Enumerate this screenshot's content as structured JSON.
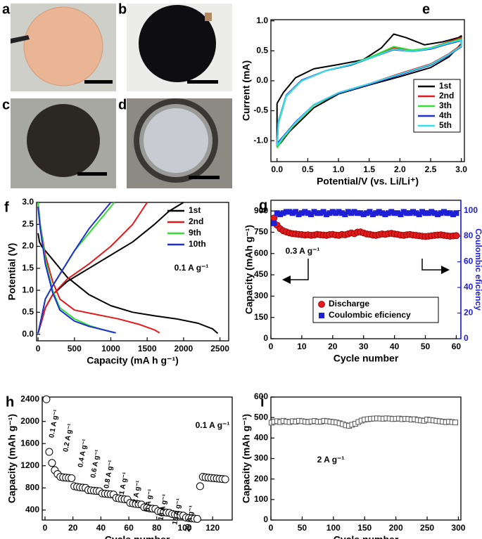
{
  "photo_panels": [
    {
      "label": "a"
    },
    {
      "label": "b"
    },
    {
      "label": "c"
    },
    {
      "label": "d"
    }
  ],
  "chart_data": [
    {
      "type": "line",
      "panel_label": "e",
      "xlabel": "Potential/V (vs. Li/Li⁺)",
      "ylabel": "Current (mA)",
      "xlim": [
        -0.1,
        3.05
      ],
      "ylim": [
        -1.35,
        1.02
      ],
      "xticks": [
        {
          "value": 0,
          "label": "0.0"
        },
        0.5,
        {
          "value": 1,
          "label": "1.0"
        },
        1.5,
        {
          "value": 2,
          "label": "2.0"
        },
        2.5,
        {
          "value": 3,
          "label": "3.0"
        }
      ],
      "yticks": [
        {
          "value": -1,
          "label": "-1.0"
        },
        -0.5,
        {
          "value": 0,
          "label": "0.0"
        },
        0.5,
        {
          "value": 1,
          "label": "1.0"
        }
      ],
      "series": [
        {
          "name": "1st",
          "color": "#000000",
          "x": [
            0,
            0.1,
            0.3,
            0.6,
            1.0,
            1.4,
            1.7,
            1.9,
            2.1,
            2.4,
            2.7,
            2.95,
            3.0,
            3.0,
            2.8,
            2.5,
            2.0,
            1.5,
            1.0,
            0.6,
            0.4,
            0.2,
            0.05,
            0,
            0
          ],
          "values": [
            -0.38,
            -0.2,
            0.05,
            0.2,
            0.27,
            0.35,
            0.55,
            0.78,
            0.72,
            0.6,
            0.65,
            0.72,
            0.75,
            0.62,
            0.4,
            0.22,
            0.07,
            -0.07,
            -0.22,
            -0.45,
            -0.65,
            -0.85,
            -1.05,
            -1.08,
            -0.38
          ]
        },
        {
          "name": "2nd",
          "color": "#e31a1c",
          "x": [
            0,
            0.02,
            0.15,
            0.4,
            0.8,
            1.2,
            1.6,
            1.9,
            2.2,
            2.5,
            2.8,
            3.0,
            3.0,
            2.8,
            2.5,
            2.0,
            1.5,
            1.0,
            0.6,
            0.3,
            0.1,
            0
          ],
          "values": [
            -1.1,
            -0.7,
            -0.25,
            0.0,
            0.17,
            0.27,
            0.42,
            0.55,
            0.5,
            0.55,
            0.65,
            0.72,
            0.6,
            0.45,
            0.28,
            0.12,
            -0.05,
            -0.2,
            -0.4,
            -0.7,
            -0.95,
            -1.1
          ]
        },
        {
          "name": "3th",
          "color": "#33dd33",
          "x": [
            0,
            0.02,
            0.15,
            0.4,
            0.8,
            1.2,
            1.6,
            1.9,
            2.2,
            2.5,
            2.8,
            3.0,
            3.0,
            2.8,
            2.5,
            2.0,
            1.5,
            1.0,
            0.6,
            0.3,
            0.1,
            0
          ],
          "values": [
            -1.12,
            -0.72,
            -0.26,
            0.0,
            0.17,
            0.27,
            0.43,
            0.57,
            0.51,
            0.55,
            0.64,
            0.7,
            0.58,
            0.44,
            0.27,
            0.11,
            -0.06,
            -0.21,
            -0.41,
            -0.71,
            -0.96,
            -1.12
          ]
        },
        {
          "name": "4th",
          "color": "#1f2fd0",
          "x": [
            0,
            0.02,
            0.15,
            0.4,
            0.8,
            1.2,
            1.6,
            1.9,
            2.2,
            2.5,
            2.8,
            3.0,
            3.0,
            2.8,
            2.5,
            2.0,
            1.5,
            1.0,
            0.6,
            0.3,
            0.1,
            0
          ],
          "values": [
            -1.05,
            -0.68,
            -0.24,
            0.01,
            0.17,
            0.26,
            0.41,
            0.52,
            0.49,
            0.53,
            0.62,
            0.67,
            0.57,
            0.43,
            0.26,
            0.1,
            -0.06,
            -0.21,
            -0.4,
            -0.69,
            -0.93,
            -1.05
          ]
        },
        {
          "name": "5th",
          "color": "#33ddee",
          "x": [
            0,
            0.02,
            0.15,
            0.4,
            0.8,
            1.2,
            1.6,
            1.9,
            2.2,
            2.5,
            2.8,
            3.0,
            3.0,
            2.8,
            2.5,
            2.0,
            1.5,
            1.0,
            0.6,
            0.3,
            0.1,
            0
          ],
          "values": [
            -1.08,
            -0.69,
            -0.25,
            0.0,
            0.17,
            0.27,
            0.41,
            0.53,
            0.49,
            0.54,
            0.63,
            0.68,
            0.58,
            0.44,
            0.27,
            0.11,
            -0.05,
            -0.2,
            -0.4,
            -0.7,
            -0.94,
            -1.08
          ]
        }
      ]
    },
    {
      "type": "line",
      "panel_label": "f",
      "xlabel": "Capacity (mA h g⁻¹)",
      "ylabel": "Potential (V)",
      "annotations": [
        "0.1 A g⁻¹"
      ],
      "xlim": [
        -20,
        2620
      ],
      "ylim": [
        -0.15,
        3.0
      ],
      "xticks": [
        0,
        500,
        1000,
        1500,
        2000,
        2500
      ],
      "yticks": [
        {
          "value": 0,
          "label": "0.0"
        },
        0.5,
        {
          "value": 1,
          "label": "1.0"
        },
        1.5,
        {
          "value": 2,
          "label": "2.0"
        },
        2.5,
        {
          "value": 3,
          "label": "3.0"
        }
      ],
      "series": [
        {
          "name": "1st",
          "color": "#000000",
          "x": [
            0,
            20,
            50,
            100,
            200,
            400,
            700,
            1000,
            1300,
            1600,
            1900,
            2200,
            2400,
            2470,
            null,
            0,
            50,
            100,
            200,
            400,
            700,
            1000,
            1300,
            1600,
            1800,
            2000
          ],
          "values": [
            2.3,
            2.1,
            2.0,
            1.9,
            1.7,
            1.3,
            0.9,
            0.65,
            0.5,
            0.42,
            0.35,
            0.25,
            0.12,
            0.02,
            null,
            0.02,
            0.3,
            0.6,
            0.9,
            1.2,
            1.5,
            1.8,
            2.1,
            2.5,
            2.8,
            3.0
          ]
        },
        {
          "name": "2nd",
          "color": "#e31a1c",
          "x": [
            0,
            30,
            100,
            200,
            300,
            500,
            800,
            1100,
            1400,
            1600,
            1670,
            null,
            0,
            50,
            100,
            200,
            400,
            700,
            1000,
            1300,
            1500
          ],
          "values": [
            3.0,
            2.5,
            1.8,
            1.2,
            0.8,
            0.55,
            0.45,
            0.35,
            0.22,
            0.1,
            0.03,
            null,
            0.02,
            0.3,
            0.6,
            0.9,
            1.25,
            1.6,
            2.0,
            2.5,
            3.0
          ]
        },
        {
          "name": "9th",
          "color": "#33dd33",
          "x": [
            0,
            30,
            100,
            200,
            300,
            500,
            700,
            900,
            1050,
            null,
            0,
            50,
            100,
            200,
            350,
            500,
            700,
            900,
            1050
          ],
          "values": [
            3.0,
            2.5,
            1.7,
            1.0,
            0.6,
            0.35,
            0.2,
            0.1,
            0.03,
            null,
            0.02,
            0.4,
            0.8,
            1.1,
            1.5,
            1.9,
            2.3,
            2.7,
            3.0
          ]
        },
        {
          "name": "10th",
          "color": "#1f2fd0",
          "x": [
            0,
            30,
            100,
            200,
            300,
            500,
            700,
            900,
            1070,
            null,
            0,
            50,
            100,
            200,
            350,
            500,
            700,
            900,
            1000
          ],
          "values": [
            2.9,
            2.4,
            1.6,
            0.95,
            0.55,
            0.3,
            0.18,
            0.1,
            0.03,
            null,
            0.02,
            0.4,
            0.8,
            1.1,
            1.5,
            1.9,
            2.4,
            2.8,
            3.0
          ]
        }
      ]
    },
    {
      "type": "scatter",
      "panel_label": "g",
      "xlabel": "Cycle number",
      "ylabel": "Capacity (mAh g⁻¹)",
      "y2label": "Coulombic eficiency",
      "y2_color": "#1f1fd6",
      "annotations": [
        "0.3 A g⁻¹"
      ],
      "xlim": [
        0,
        61.5
      ],
      "ylim": [
        0,
        975
      ],
      "y2lim": [
        0,
        108
      ],
      "xticks": [
        0,
        10,
        20,
        30,
        40,
        50,
        60
      ],
      "yticks": [
        0,
        150,
        300,
        450,
        600,
        750,
        900
      ],
      "y2ticks": [
        0,
        20,
        40,
        60,
        80,
        100
      ],
      "x": [
        1,
        2,
        3,
        4,
        5,
        6,
        7,
        8,
        9,
        10,
        11,
        12,
        13,
        14,
        15,
        16,
        17,
        18,
        19,
        20,
        21,
        22,
        23,
        24,
        25,
        26,
        27,
        28,
        29,
        30,
        31,
        32,
        33,
        34,
        35,
        36,
        37,
        38,
        39,
        40,
        41,
        42,
        43,
        44,
        45,
        46,
        47,
        48,
        49,
        50,
        51,
        52,
        53,
        54,
        55,
        56,
        57,
        58,
        59,
        60
      ],
      "series": [
        {
          "name": "Discharge",
          "color": "#e31a1c",
          "marker": "circle",
          "values": [
            850,
            800,
            775,
            760,
            752,
            745,
            740,
            738,
            735,
            733,
            730,
            732,
            728,
            730,
            735,
            732,
            730,
            728,
            733,
            735,
            730,
            728,
            734,
            732,
            738,
            745,
            740,
            750,
            752,
            745,
            738,
            735,
            730,
            728,
            733,
            738,
            735,
            740,
            742,
            738,
            735,
            730,
            728,
            732,
            734,
            730,
            728,
            725,
            722,
            720,
            722,
            725,
            728,
            730,
            732,
            728,
            725,
            722,
            724,
            726
          ]
        },
        {
          "name": "Coulombic eficiency",
          "color": "#1f1fd6",
          "marker": "square",
          "axis": "y2",
          "values": [
            90,
            98,
            97,
            98,
            99,
            99,
            98,
            99,
            97,
            98,
            99,
            98,
            97,
            99,
            98,
            98,
            99,
            97,
            98,
            99,
            98,
            99,
            98,
            97,
            99,
            98,
            99,
            98,
            98,
            97,
            98,
            99,
            97,
            98,
            99,
            98,
            97,
            98,
            99,
            98,
            98,
            97,
            99,
            98,
            98,
            99,
            98,
            97,
            99,
            98,
            98,
            99,
            98,
            97,
            98,
            99,
            98,
            98,
            97,
            98
          ]
        }
      ]
    },
    {
      "type": "scatter",
      "panel_label": "h",
      "xlabel": "Cycle number",
      "ylabel": "Capacity (mAh g⁻¹)",
      "annotations": [
        "0.1 A g⁻¹",
        "0.2 A g⁻¹",
        "0.4 A g⁻¹",
        "0.6 A g⁻¹",
        "0.8 A g⁻¹",
        "1 A g⁻¹",
        "2 A g⁻¹",
        "5 A g⁻¹",
        "10 A g⁻¹",
        "15 A g⁻¹",
        "20 A g⁻¹",
        "0.1 A g⁻¹"
      ],
      "xlim": [
        -2,
        134
      ],
      "ylim": [
        220,
        2440
      ],
      "xticks": [
        0,
        20,
        40,
        60,
        80,
        100,
        120
      ],
      "yticks": [
        400,
        800,
        1200,
        1600,
        2000,
        2400
      ],
      "x": [
        1,
        3,
        5,
        7,
        9,
        11,
        13,
        15,
        17,
        19,
        21,
        23,
        25,
        27,
        29,
        31,
        33,
        35,
        37,
        39,
        41,
        43,
        45,
        47,
        49,
        51,
        53,
        55,
        57,
        59,
        61,
        63,
        65,
        67,
        69,
        71,
        73,
        75,
        77,
        79,
        81,
        83,
        85,
        87,
        89,
        91,
        93,
        95,
        97,
        99,
        101,
        103,
        105,
        107,
        109,
        111,
        113,
        115,
        117,
        119,
        121,
        123,
        125,
        127,
        129
      ],
      "series": [
        {
          "color": "#000000",
          "marker": "open-circle",
          "values": [
            2400,
            1450,
            1250,
            1120,
            1050,
            1000,
            990,
            985,
            980,
            975,
            830,
            820,
            810,
            805,
            800,
            760,
            755,
            750,
            745,
            740,
            700,
            695,
            690,
            685,
            680,
            620,
            610,
            600,
            595,
            590,
            530,
            520,
            510,
            505,
            500,
            450,
            440,
            430,
            425,
            420,
            380,
            370,
            360,
            355,
            350,
            330,
            320,
            310,
            305,
            300,
            265,
            255,
            250,
            245,
            240,
            830,
            1000,
            990,
            985,
            980,
            975,
            970,
            965,
            960,
            955
          ]
        }
      ]
    },
    {
      "type": "scatter",
      "panel_label": "i",
      "xlabel": "Cycle number",
      "ylabel": "Capacity (mAh g⁻¹)",
      "annotations": [
        "2 A g⁻¹"
      ],
      "xlim": [
        0,
        304
      ],
      "ylim": [
        0,
        600
      ],
      "xticks": [
        0,
        50,
        100,
        150,
        200,
        250,
        300
      ],
      "yticks": [
        0,
        100,
        200,
        300,
        400,
        500,
        600
      ],
      "x": [
        1,
        5,
        10,
        15,
        20,
        25,
        30,
        35,
        40,
        45,
        50,
        55,
        60,
        65,
        70,
        75,
        80,
        85,
        90,
        95,
        100,
        105,
        110,
        115,
        120,
        125,
        130,
        135,
        140,
        145,
        150,
        155,
        160,
        165,
        170,
        175,
        180,
        185,
        190,
        195,
        200,
        205,
        210,
        215,
        220,
        225,
        230,
        235,
        240,
        245,
        250,
        255,
        260,
        265,
        270,
        275,
        280,
        285,
        290,
        295
      ],
      "series": [
        {
          "color": "#555555",
          "marker": "open-square",
          "values": [
            475,
            480,
            482,
            478,
            484,
            480,
            478,
            482,
            480,
            484,
            482,
            480,
            478,
            481,
            483,
            479,
            480,
            484,
            482,
            480,
            478,
            476,
            472,
            468,
            462,
            460,
            465,
            470,
            478,
            485,
            490,
            492,
            494,
            495,
            496,
            495,
            494,
            496,
            495,
            493,
            494,
            495,
            492,
            494,
            493,
            490,
            492,
            488,
            486,
            484,
            490,
            488,
            486,
            484,
            482,
            480,
            478,
            480,
            478,
            476
          ]
        }
      ]
    }
  ]
}
